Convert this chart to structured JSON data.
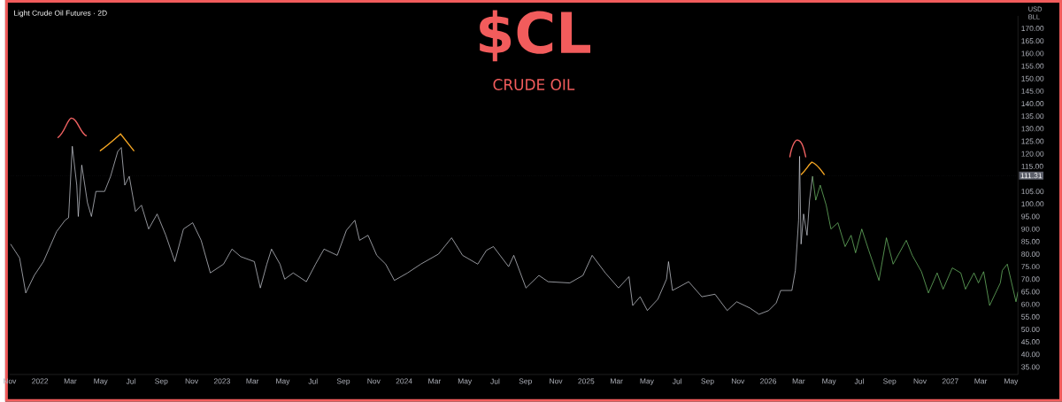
{
  "chart_data": {
    "type": "line",
    "title": "$CL",
    "subtitle": "CRUDE OIL",
    "annotations": [
      "Light Crude Oil Futures · 2D",
      "USD",
      "BLL"
    ],
    "xlim": [
      "2021-11-01",
      "2027-05-15"
    ],
    "ylim": [
      32,
      175
    ],
    "xticks": [
      {
        "value": "2021-11-01",
        "label": "Nov"
      },
      {
        "value": "2022-01-01",
        "label": "2022"
      },
      {
        "value": "2022-03-01",
        "label": "Mar"
      },
      {
        "value": "2022-05-01",
        "label": "May"
      },
      {
        "value": "2022-07-01",
        "label": "Jul"
      },
      {
        "value": "2022-09-01",
        "label": "Sep"
      },
      {
        "value": "2022-11-01",
        "label": "Nov"
      },
      {
        "value": "2023-01-01",
        "label": "2023"
      },
      {
        "value": "2023-03-01",
        "label": "Mar"
      },
      {
        "value": "2023-05-01",
        "label": "May"
      },
      {
        "value": "2023-07-01",
        "label": "Jul"
      },
      {
        "value": "2023-09-01",
        "label": "Sep"
      },
      {
        "value": "2023-11-01",
        "label": "Nov"
      },
      {
        "value": "2024-01-01",
        "label": "2024"
      },
      {
        "value": "2024-03-01",
        "label": "Mar"
      },
      {
        "value": "2024-05-01",
        "label": "May"
      },
      {
        "value": "2024-07-01",
        "label": "Jul"
      },
      {
        "value": "2024-09-01",
        "label": "Sep"
      },
      {
        "value": "2024-11-01",
        "label": "Nov"
      },
      {
        "value": "2025-01-01",
        "label": "2025"
      },
      {
        "value": "2025-03-01",
        "label": "Mar"
      },
      {
        "value": "2025-05-01",
        "label": "May"
      },
      {
        "value": "2025-07-01",
        "label": "Jul"
      },
      {
        "value": "2025-09-01",
        "label": "Sep"
      },
      {
        "value": "2025-11-01",
        "label": "Nov"
      },
      {
        "value": "2026-01-01",
        "label": "2026"
      },
      {
        "value": "2026-03-01",
        "label": "Mar"
      },
      {
        "value": "2026-05-01",
        "label": "May"
      },
      {
        "value": "2026-07-01",
        "label": "Jul"
      },
      {
        "value": "2026-09-01",
        "label": "Sep"
      },
      {
        "value": "2026-11-01",
        "label": "Nov"
      },
      {
        "value": "2027-01-01",
        "label": "2027"
      },
      {
        "value": "2027-03-01",
        "label": "Mar"
      },
      {
        "value": "2027-05-01",
        "label": "May"
      }
    ],
    "yticks": [
      {
        "value": 35,
        "label": "35.00"
      },
      {
        "value": 40,
        "label": "40.00"
      },
      {
        "value": 45,
        "label": "45.00"
      },
      {
        "value": 50,
        "label": "50.00"
      },
      {
        "value": 55,
        "label": "55.00"
      },
      {
        "value": 60,
        "label": "60.00"
      },
      {
        "value": 65,
        "label": "65.00"
      },
      {
        "value": 70,
        "label": "70.00"
      },
      {
        "value": 75,
        "label": "75.00"
      },
      {
        "value": 80,
        "label": "80.00"
      },
      {
        "value": 85,
        "label": "85.00"
      },
      {
        "value": 90,
        "label": "90.00"
      },
      {
        "value": 95,
        "label": "95.00"
      },
      {
        "value": 100,
        "label": "100.00"
      },
      {
        "value": 105,
        "label": "105.00"
      },
      {
        "value": 115,
        "label": "115.00"
      },
      {
        "value": 120,
        "label": "120.00"
      },
      {
        "value": 125,
        "label": "125.00"
      },
      {
        "value": 130,
        "label": "130.00"
      },
      {
        "value": 135,
        "label": "135.00"
      },
      {
        "value": 140,
        "label": "140.00"
      },
      {
        "value": 145,
        "label": "145.00"
      },
      {
        "value": 150,
        "label": "150.00"
      },
      {
        "value": 155,
        "label": "155.00"
      },
      {
        "value": 160,
        "label": "160.00"
      },
      {
        "value": 165,
        "label": "165.00"
      },
      {
        "value": 170,
        "label": "170.00"
      }
    ],
    "ref_lines": [
      {
        "axis": "y",
        "value": 111.31,
        "label": "111.31",
        "color": "#5d606b",
        "line_style": "dotted"
      }
    ],
    "marker": "none",
    "line_style": "solid",
    "grid": false,
    "series": [
      {
        "color": "#d1d4dc",
        "x": [
          "2021-11-03",
          "2021-11-21",
          "2021-12-03",
          "2021-12-20",
          "2022-01-08",
          "2022-02-04",
          "2022-02-21",
          "2022-02-28",
          "2022-03-05",
          "2022-03-14",
          "2022-03-17",
          "2022-03-24",
          "2022-04-05",
          "2022-04-13",
          "2022-04-22",
          "2022-05-09",
          "2022-05-21",
          "2022-06-05",
          "2022-06-12",
          "2022-06-19",
          "2022-06-28",
          "2022-07-10",
          "2022-07-22",
          "2022-08-06",
          "2022-08-23",
          "2022-09-10",
          "2022-09-28",
          "2022-10-15",
          "2022-11-03",
          "2022-11-20",
          "2022-12-08",
          "2023-01-04",
          "2023-01-21",
          "2023-02-08",
          "2023-03-05",
          "2023-03-17",
          "2023-03-30",
          "2023-04-09",
          "2023-04-26",
          "2023-05-05",
          "2023-05-22",
          "2023-06-18",
          "2023-07-06",
          "2023-07-23",
          "2023-08-19",
          "2023-09-07",
          "2023-09-24",
          "2023-10-03",
          "2023-10-20",
          "2023-11-07",
          "2023-11-25",
          "2023-12-12",
          "2024-01-08",
          "2024-02-04",
          "2024-03-09",
          "2024-04-05",
          "2024-04-27",
          "2024-05-27",
          "2024-06-14",
          "2024-06-28",
          "2024-07-28",
          "2024-08-08",
          "2024-09-02",
          "2024-09-28",
          "2024-10-16",
          "2024-11-29",
          "2024-12-25",
          "2025-01-13",
          "2025-02-09",
          "2025-03-05",
          "2025-03-26",
          "2025-04-03",
          "2025-04-18",
          "2025-05-02",
          "2025-05-23",
          "2025-06-10",
          "2025-06-14",
          "2025-06-22",
          "2025-07-24",
          "2025-08-20",
          "2025-09-16",
          "2025-10-10",
          "2025-10-29",
          "2025-11-25",
          "2025-12-13",
          "2026-01-02",
          "2026-01-17",
          "2026-01-26",
          "2026-02-18",
          "2026-02-25",
          "2026-03-01",
          "2026-03-03",
          "2026-03-06",
          "2026-03-11",
          "2026-03-18",
          "2026-03-23",
          "2026-03-29"
        ],
        "values": [
          84,
          78.5,
          64.5,
          71.5,
          77,
          89,
          93.5,
          94.5,
          123,
          107.5,
          95,
          115.5,
          100.5,
          95,
          105,
          105,
          111,
          121,
          122.5,
          107.5,
          111,
          97,
          99.5,
          90,
          96,
          87.5,
          77,
          90,
          92.5,
          85.5,
          72.5,
          76,
          82,
          79,
          77,
          66.5,
          76,
          82,
          76,
          70,
          72.5,
          69,
          76,
          82,
          79.5,
          89.5,
          93.5,
          85.5,
          87.5,
          79.5,
          76,
          69.5,
          72.5,
          76,
          80,
          86.5,
          79.5,
          76,
          81.5,
          83,
          75,
          79.5,
          66.5,
          71.5,
          69,
          68.5,
          71.5,
          79.5,
          72.5,
          66.5,
          71,
          59.5,
          63,
          57.5,
          62,
          70,
          77,
          65.5,
          69,
          63,
          64,
          57.5,
          61,
          58.5,
          56,
          57.5,
          60.5,
          65.5,
          65.5,
          73.5,
          93.5,
          119,
          84,
          96,
          87.5,
          101.5,
          111
        ]
      },
      {
        "color": "#76c96f",
        "x": [
          "2026-03-29",
          "2026-04-05",
          "2026-04-14",
          "2026-04-26",
          "2026-05-05",
          "2026-05-19",
          "2026-06-03",
          "2026-06-15",
          "2026-06-24",
          "2026-07-06",
          "2026-07-20",
          "2026-08-10",
          "2026-08-25",
          "2026-09-08",
          "2026-10-04",
          "2026-10-16",
          "2026-11-04",
          "2026-11-18",
          "2026-12-05",
          "2026-12-17",
          "2027-01-05",
          "2027-01-22",
          "2027-02-01",
          "2027-02-18",
          "2027-02-27",
          "2027-03-07",
          "2027-03-19",
          "2027-04-10",
          "2027-04-14",
          "2027-04-24",
          "2027-05-11",
          "2027-05-15"
        ],
        "values": [
          111,
          101.5,
          107.5,
          99.5,
          90,
          92.5,
          83,
          87.5,
          80.5,
          90,
          81.5,
          69.5,
          86.5,
          76,
          85.5,
          79.5,
          73,
          64.5,
          72.5,
          66,
          74.5,
          72.5,
          66,
          72.5,
          68.5,
          73,
          59.5,
          68.5,
          73.5,
          76,
          61,
          65
        ]
      }
    ]
  }
}
